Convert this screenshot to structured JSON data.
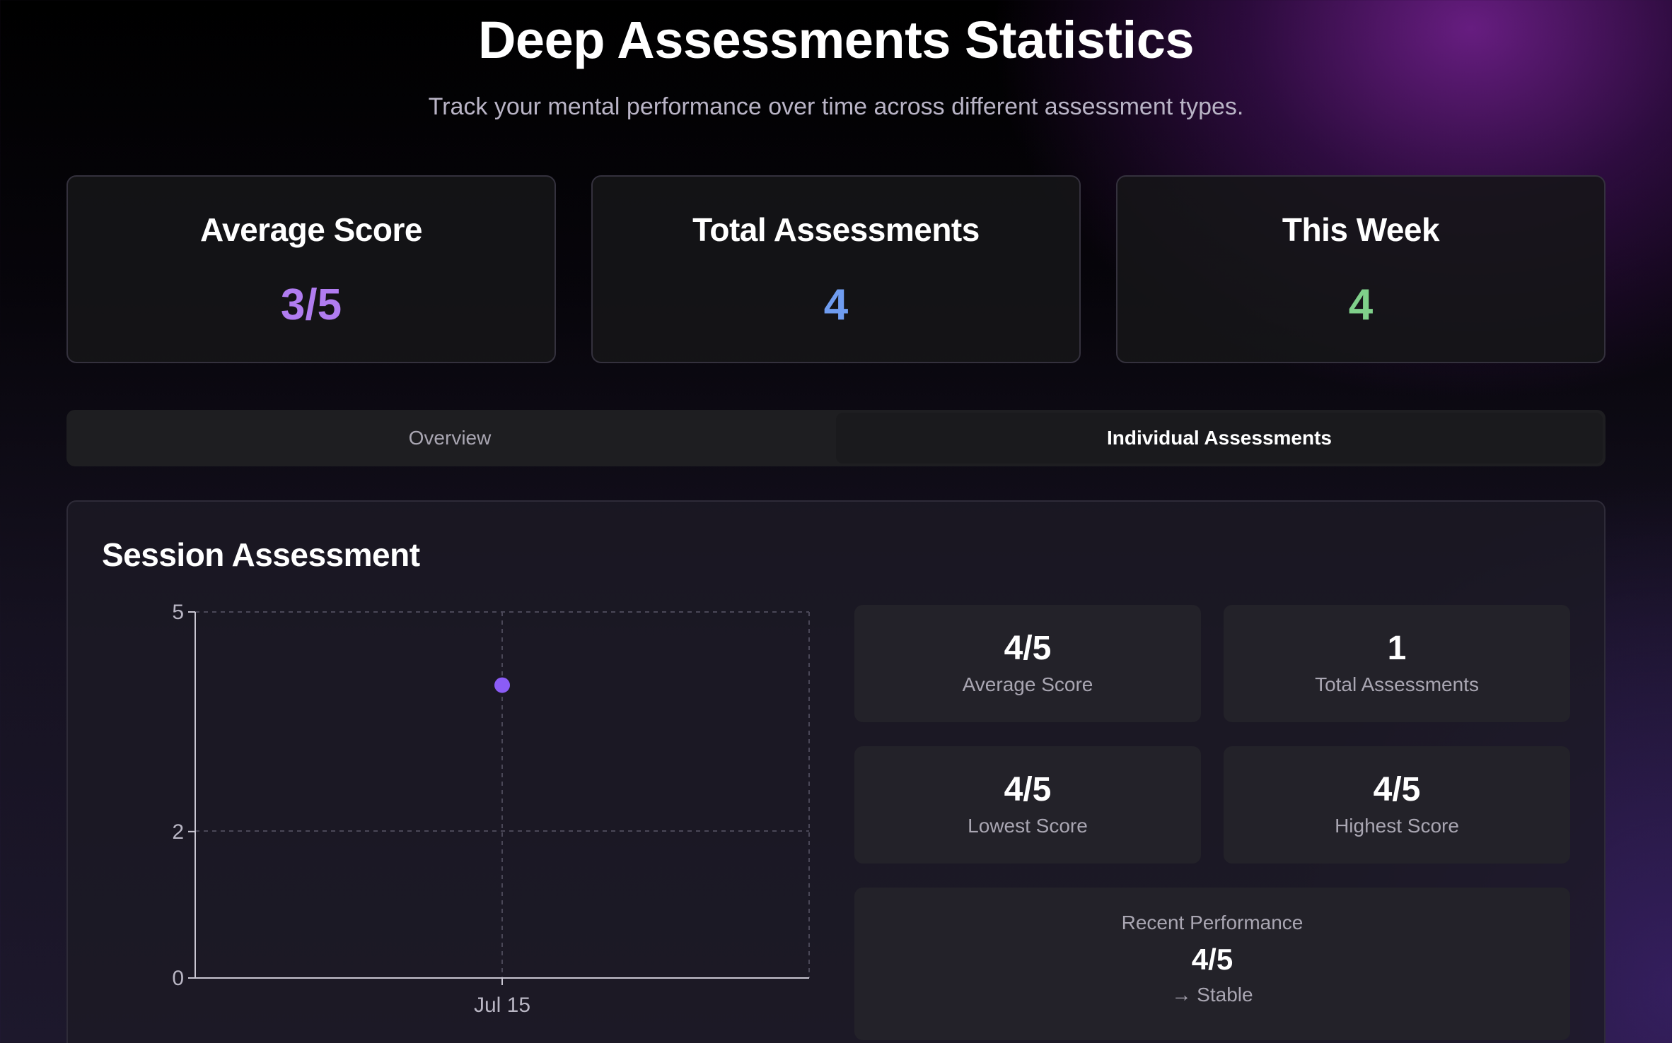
{
  "header": {
    "title": "Deep Assessments Statistics",
    "subtitle": "Track your mental performance over time across different assessment types."
  },
  "summary": [
    {
      "label": "Average Score",
      "value": "3/5",
      "color": "#b07cf0"
    },
    {
      "label": "Total Assessments",
      "value": "4",
      "color": "#6f9cf0"
    },
    {
      "label": "This Week",
      "value": "4",
      "color": "#7fd08a"
    }
  ],
  "tabs": [
    {
      "label": "Overview",
      "active": false
    },
    {
      "label": "Individual Assessments",
      "active": true
    }
  ],
  "panel": {
    "title": "Session Assessment",
    "stats": [
      {
        "value": "4/5",
        "label": "Average Score"
      },
      {
        "value": "1",
        "label": "Total Assessments"
      },
      {
        "value": "4/5",
        "label": "Lowest Score"
      },
      {
        "value": "4/5",
        "label": "Highest Score"
      }
    ],
    "recent": {
      "label": "Recent Performance",
      "value": "4/5",
      "trend": "→ Stable"
    }
  },
  "chart_data": {
    "type": "scatter",
    "title": "",
    "xlabel": "",
    "ylabel": "",
    "categories": [
      "Jul 15"
    ],
    "x": [
      "Jul 15"
    ],
    "values": [
      4
    ],
    "y_ticks": [
      0,
      2,
      5
    ],
    "ylim": [
      0,
      5
    ],
    "grid": true,
    "point_color": "#8b5cf6"
  }
}
